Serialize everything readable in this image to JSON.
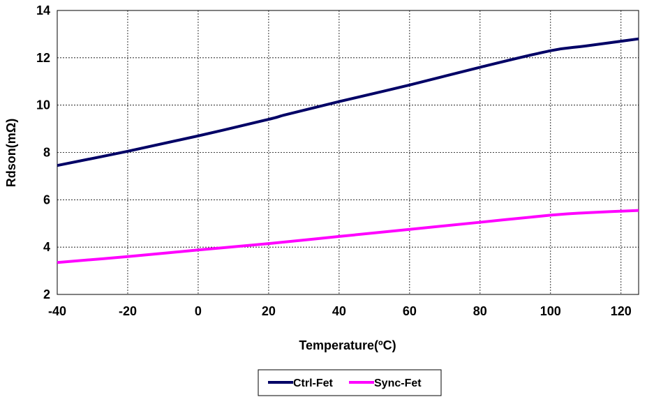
{
  "chart_data": {
    "type": "line",
    "xlabel": "Temperature(ºC)",
    "ylabel": "Rdson(mΩ)",
    "xlim": [
      -40,
      125
    ],
    "ylim": [
      2,
      14
    ],
    "xticks": [
      -40,
      -20,
      0,
      20,
      40,
      60,
      80,
      100,
      120
    ],
    "yticks": [
      2,
      4,
      6,
      8,
      10,
      12,
      14
    ],
    "grid": true,
    "legend_position": "bottom",
    "series": [
      {
        "name": "Ctrl-Fet",
        "color": "#000066",
        "x": [
          -40,
          -20,
          0,
          20,
          25,
          40,
          60,
          80,
          100,
          110,
          125
        ],
        "y": [
          7.45,
          8.05,
          8.7,
          9.4,
          9.6,
          10.15,
          10.85,
          11.6,
          12.3,
          12.5,
          12.8
        ]
      },
      {
        "name": "Sync-Fet",
        "color": "#FF00FF",
        "x": [
          -40,
          -20,
          0,
          20,
          40,
          60,
          80,
          100,
          110,
          125
        ],
        "y": [
          3.35,
          3.6,
          3.88,
          4.15,
          4.45,
          4.75,
          5.05,
          5.35,
          5.45,
          5.55
        ]
      }
    ]
  }
}
